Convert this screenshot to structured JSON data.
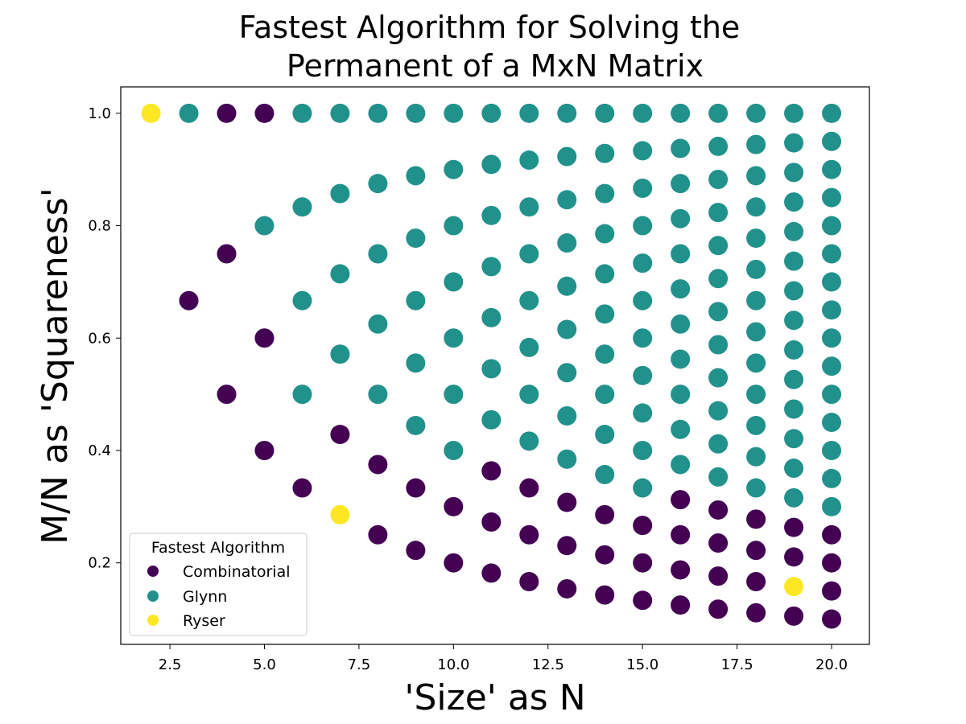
{
  "chart_data": {
    "type": "scatter",
    "title_lines": [
      "Fastest Algorithm for Solving the",
      "Permanent of a MxN Matrix"
    ],
    "xlabel": "'Size' as N",
    "ylabel": "M/N as 'Squareness'",
    "xlim": [
      1.2,
      21.0
    ],
    "ylim": [
      0.055,
      1.047
    ],
    "xticks": [
      2.5,
      5.0,
      7.5,
      10.0,
      12.5,
      15.0,
      17.5,
      20.0
    ],
    "xtick_labels": [
      "2.5",
      "5.0",
      "7.5",
      "10.0",
      "12.5",
      "15.0",
      "17.5",
      "20.0"
    ],
    "yticks": [
      0.2,
      0.4,
      0.6,
      0.8,
      1.0
    ],
    "ytick_labels": [
      "0.2",
      "0.4",
      "0.6",
      "0.8",
      "1.0"
    ],
    "grid": false,
    "legend": {
      "title": "Fastest Algorithm",
      "placement": "lower-left",
      "entries": [
        "Combinatorial",
        "Glynn",
        "Ryser"
      ]
    },
    "colors": {
      "Combinatorial": "#440154",
      "Glynn": "#21918c",
      "Ryser": "#fde725"
    },
    "n_range": [
      2,
      20
    ],
    "default_algorithm": "Glynn",
    "exceptions": {
      "Combinatorial": [
        [
          4,
          4
        ],
        [
          5,
          5
        ],
        [
          3,
          2
        ],
        [
          4,
          3
        ],
        [
          5,
          3
        ],
        [
          4,
          2
        ],
        [
          5,
          2
        ],
        [
          6,
          2
        ],
        [
          7,
          3
        ],
        [
          7,
          2
        ],
        [
          8,
          3
        ],
        [
          8,
          2
        ],
        [
          9,
          3
        ],
        [
          9,
          2
        ],
        [
          10,
          3
        ],
        [
          10,
          2
        ],
        [
          11,
          4
        ],
        [
          11,
          3
        ],
        [
          11,
          2
        ],
        [
          12,
          4
        ],
        [
          12,
          3
        ],
        [
          12,
          2
        ],
        [
          13,
          4
        ],
        [
          13,
          3
        ],
        [
          13,
          2
        ],
        [
          14,
          4
        ],
        [
          14,
          3
        ],
        [
          14,
          2
        ],
        [
          15,
          4
        ],
        [
          15,
          3
        ],
        [
          15,
          2
        ],
        [
          16,
          5
        ],
        [
          16,
          4
        ],
        [
          16,
          3
        ],
        [
          16,
          2
        ],
        [
          17,
          5
        ],
        [
          17,
          4
        ],
        [
          17,
          3
        ],
        [
          17,
          2
        ],
        [
          18,
          5
        ],
        [
          18,
          4
        ],
        [
          18,
          3
        ],
        [
          18,
          2
        ],
        [
          19,
          5
        ],
        [
          19,
          4
        ],
        [
          19,
          2
        ],
        [
          20,
          5
        ],
        [
          20,
          4
        ],
        [
          20,
          3
        ],
        [
          20,
          2
        ]
      ],
      "Ryser": [
        [
          2,
          2
        ],
        [
          7,
          2
        ],
        [
          19,
          3
        ]
      ]
    }
  }
}
